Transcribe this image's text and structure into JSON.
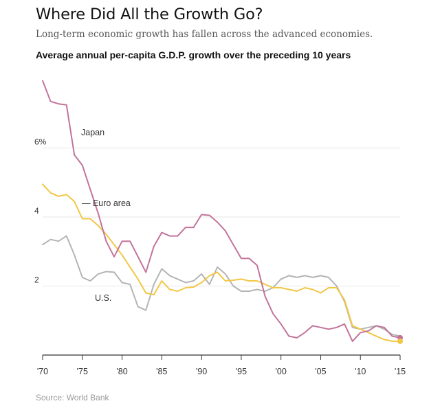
{
  "page": {
    "title": "Where Did All the Growth Go?",
    "subtitle": "Long-term economic growth has fallen across the advanced economies.",
    "source": "Source: World Bank"
  },
  "chart_data": {
    "type": "line",
    "title": "Average annual per-capita G.D.P. growth over the preceding 10 years",
    "xlabel": "",
    "ylabel": "",
    "xlim": [
      1970,
      2015
    ],
    "ylim": [
      0,
      8
    ],
    "grid": true,
    "yticks": [
      {
        "value": 6,
        "label": "6%"
      },
      {
        "value": 4,
        "label": "4"
      },
      {
        "value": 2,
        "label": "2"
      }
    ],
    "xticks": [
      {
        "value": 1970,
        "label": "'70"
      },
      {
        "value": 1975,
        "label": "'75"
      },
      {
        "value": 1980,
        "label": "'80"
      },
      {
        "value": 1985,
        "label": "'85"
      },
      {
        "value": 1990,
        "label": "'90"
      },
      {
        "value": 1995,
        "label": "'95"
      },
      {
        "value": 2000,
        "label": "'00"
      },
      {
        "value": 2005,
        "label": "'05"
      },
      {
        "value": 2010,
        "label": "'10"
      },
      {
        "value": 2015,
        "label": "'15"
      }
    ],
    "x": [
      1970,
      1971,
      1972,
      1973,
      1974,
      1975,
      1976,
      1977,
      1978,
      1979,
      1980,
      1981,
      1982,
      1983,
      1984,
      1985,
      1986,
      1987,
      1988,
      1989,
      1990,
      1991,
      1992,
      1993,
      1994,
      1995,
      1996,
      1997,
      1998,
      1999,
      2000,
      2001,
      2002,
      2003,
      2004,
      2005,
      2006,
      2007,
      2008,
      2009,
      2010,
      2011,
      2012,
      2013,
      2014,
      2015
    ],
    "series": [
      {
        "name": "Japan",
        "label": "Japan",
        "color": "#c2739a",
        "values": [
          7.95,
          7.35,
          7.28,
          7.25,
          5.8,
          5.5,
          4.8,
          4.1,
          3.3,
          2.85,
          3.3,
          3.3,
          2.85,
          2.4,
          3.15,
          3.55,
          3.45,
          3.45,
          3.7,
          3.7,
          4.07,
          4.05,
          3.85,
          3.6,
          3.2,
          2.8,
          2.8,
          2.6,
          1.7,
          1.2,
          0.9,
          0.55,
          0.5,
          0.65,
          0.85,
          0.8,
          0.75,
          0.8,
          0.9,
          0.4,
          0.65,
          0.7,
          0.85,
          0.8,
          0.55,
          0.5
        ]
      },
      {
        "name": "Euro area",
        "label": "— Euro area",
        "color": "#f2c744",
        "values": [
          4.95,
          4.7,
          4.6,
          4.65,
          4.45,
          3.95,
          3.95,
          3.75,
          3.5,
          3.2,
          2.9,
          2.55,
          2.2,
          1.8,
          1.75,
          2.15,
          1.9,
          1.85,
          1.95,
          1.97,
          2.1,
          2.3,
          2.4,
          2.15,
          2.17,
          2.2,
          2.15,
          2.15,
          2.05,
          1.95,
          1.95,
          1.9,
          1.85,
          1.95,
          1.9,
          1.8,
          1.95,
          1.95,
          1.6,
          0.85,
          0.75,
          0.65,
          0.55,
          0.45,
          0.4,
          0.4
        ]
      },
      {
        "name": "U.S.",
        "label": "U.S.",
        "color": "#b4b4b4",
        "values": [
          3.2,
          3.35,
          3.3,
          3.45,
          2.9,
          2.25,
          2.15,
          2.35,
          2.42,
          2.4,
          2.1,
          2.05,
          1.4,
          1.3,
          2.05,
          2.5,
          2.3,
          2.2,
          2.1,
          2.15,
          2.35,
          2.05,
          2.55,
          2.35,
          2.0,
          1.85,
          1.85,
          1.9,
          1.85,
          1.95,
          2.2,
          2.3,
          2.25,
          2.3,
          2.25,
          2.3,
          2.25,
          2.0,
          1.55,
          0.8,
          0.75,
          0.8,
          0.85,
          0.75,
          0.6,
          0.55
        ]
      }
    ]
  }
}
